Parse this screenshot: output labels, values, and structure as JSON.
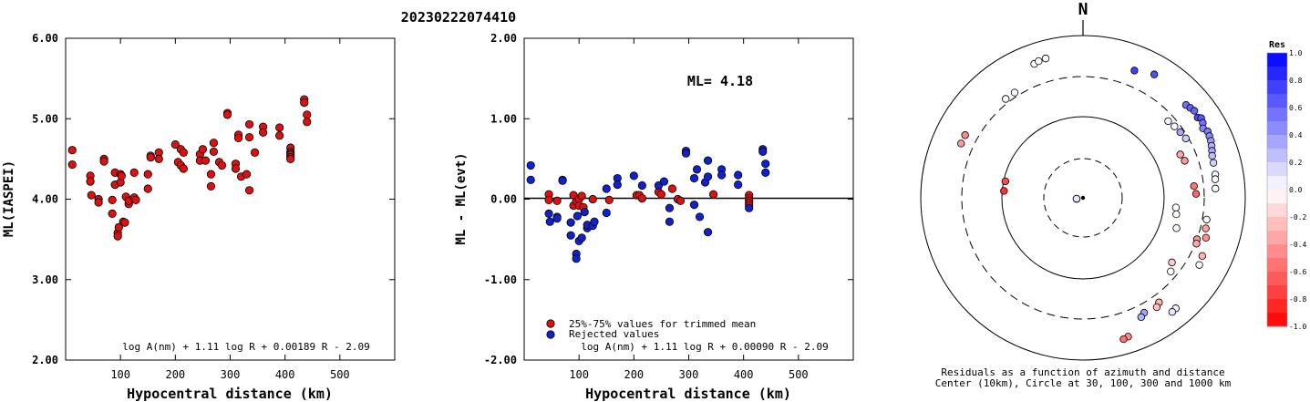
{
  "title": "20230222074410",
  "chart_data": [
    {
      "type": "scatter",
      "xlabel": "Hypocentral distance (km)",
      "ylabel": "ML(IASPEI)",
      "xlim": [
        0,
        600
      ],
      "ylim": [
        2.0,
        6.0
      ],
      "xticks": [
        "100",
        "200",
        "300",
        "400",
        "500"
      ],
      "yticks": [
        "2.00",
        "3.00",
        "4.00",
        "5.00",
        "6.00"
      ],
      "formula": "log A(nm) + 1.11 log R + 0.00189 R - 2.09",
      "series": [
        {
          "color": "#dd1111",
          "points": [
            [
              12,
              4.61
            ],
            [
              12,
              4.43
            ],
            [
              45,
              4.29
            ],
            [
              45,
              4.22
            ],
            [
              47,
              4.05
            ],
            [
              60,
              4.0
            ],
            [
              60,
              3.96
            ],
            [
              70,
              4.5
            ],
            [
              70,
              4.47
            ],
            [
              85,
              3.99
            ],
            [
              85,
              3.82
            ],
            [
              90,
              4.33
            ],
            [
              90,
              4.18
            ],
            [
              95,
              3.58
            ],
            [
              95,
              3.54
            ],
            [
              97,
              3.65
            ],
            [
              100,
              4.31
            ],
            [
              100,
              4.21
            ],
            [
              102,
              4.29
            ],
            [
              105,
              3.72
            ],
            [
              108,
              3.71
            ],
            [
              110,
              4.03
            ],
            [
              115,
              3.94
            ],
            [
              115,
              3.98
            ],
            [
              125,
              4.33
            ],
            [
              125,
              4.02
            ],
            [
              128,
              3.99
            ],
            [
              150,
              4.31
            ],
            [
              150,
              4.13
            ],
            [
              155,
              4.54
            ],
            [
              155,
              4.52
            ],
            [
              170,
              4.58
            ],
            [
              170,
              4.5
            ],
            [
              200,
              4.68
            ],
            [
              205,
              4.46
            ],
            [
              210,
              4.42
            ],
            [
              210,
              4.62
            ],
            [
              215,
              4.38
            ],
            [
              215,
              4.58
            ],
            [
              245,
              4.56
            ],
            [
              245,
              4.48
            ],
            [
              250,
              4.62
            ],
            [
              255,
              4.48
            ],
            [
              265,
              4.31
            ],
            [
              265,
              4.16
            ],
            [
              270,
              4.7
            ],
            [
              270,
              4.59
            ],
            [
              280,
              4.46
            ],
            [
              285,
              4.42
            ],
            [
              295,
              5.07
            ],
            [
              295,
              5.05
            ],
            [
              310,
              4.44
            ],
            [
              310,
              4.38
            ],
            [
              315,
              4.8
            ],
            [
              315,
              4.76
            ],
            [
              320,
              4.28
            ],
            [
              330,
              4.31
            ],
            [
              335,
              4.93
            ],
            [
              335,
              4.77
            ],
            [
              335,
              4.11
            ],
            [
              345,
              4.58
            ],
            [
              360,
              4.9
            ],
            [
              360,
              4.83
            ],
            [
              390,
              4.89
            ],
            [
              390,
              4.79
            ],
            [
              410,
              4.64
            ],
            [
              410,
              4.59
            ],
            [
              410,
              4.57
            ],
            [
              410,
              4.55
            ],
            [
              410,
              4.52
            ],
            [
              410,
              4.5
            ],
            [
              435,
              5.24
            ],
            [
              435,
              5.2
            ],
            [
              440,
              5.05
            ],
            [
              440,
              4.96
            ]
          ]
        }
      ]
    },
    {
      "type": "scatter",
      "xlabel": "Hypocentral distance (km)",
      "ylabel": "ML - ML(evt)",
      "xlim": [
        0,
        600
      ],
      "ylim": [
        -2.0,
        2.0
      ],
      "xticks": [
        "100",
        "200",
        "300",
        "400",
        "500"
      ],
      "yticks": [
        "-2.00",
        "-1.00",
        "0.00",
        "1.00",
        "2.00"
      ],
      "annotation": "ML= 4.18",
      "formula": "log A(nm) + 1.11 log R + 0.00090 R - 2.09",
      "legend": [
        "25%-75% values for trimmed mean",
        "Rejected values"
      ],
      "series": [
        {
          "name": "25%-75% values for trimmed mean",
          "color": "#dd1111",
          "points": [
            [
              45,
              0.06
            ],
            [
              45,
              -0.01
            ],
            [
              60,
              -0.02
            ],
            [
              90,
              0.05
            ],
            [
              90,
              -0.08
            ],
            [
              95,
              -0.03
            ],
            [
              100,
              0.0
            ],
            [
              100,
              -0.08
            ],
            [
              105,
              0.04
            ],
            [
              108,
              -0.1
            ],
            [
              125,
              0.0
            ],
            [
              155,
              -0.01
            ],
            [
              205,
              0.05
            ],
            [
              210,
              0.05
            ],
            [
              215,
              0.01
            ],
            [
              245,
              0.09
            ],
            [
              250,
              0.06
            ],
            [
              270,
              0.13
            ],
            [
              280,
              0.0
            ],
            [
              285,
              -0.02
            ],
            [
              345,
              0.06
            ],
            [
              410,
              0.05
            ],
            [
              410,
              0.01
            ],
            [
              410,
              -0.02
            ],
            [
              410,
              -0.05
            ],
            [
              410,
              -0.08
            ]
          ]
        },
        {
          "name": "Rejected values",
          "color": "#1122cc",
          "points": [
            [
              12,
              0.42
            ],
            [
              12,
              0.24
            ],
            [
              45,
              -0.18
            ],
            [
              47,
              -0.28
            ],
            [
              60,
              -0.22
            ],
            [
              60,
              -0.24
            ],
            [
              70,
              0.24
            ],
            [
              70,
              0.23
            ],
            [
              85,
              -0.29
            ],
            [
              85,
              -0.45
            ],
            [
              95,
              -0.68
            ],
            [
              95,
              -0.74
            ],
            [
              97,
              -0.21
            ],
            [
              100,
              -0.52
            ],
            [
              105,
              -0.48
            ],
            [
              110,
              -0.16
            ],
            [
              115,
              -0.36
            ],
            [
              115,
              -0.32
            ],
            [
              125,
              -0.33
            ],
            [
              128,
              -0.28
            ],
            [
              150,
              0.13
            ],
            [
              150,
              -0.17
            ],
            [
              170,
              0.26
            ],
            [
              170,
              0.18
            ],
            [
              200,
              0.29
            ],
            [
              215,
              0.17
            ],
            [
              245,
              0.17
            ],
            [
              255,
              0.22
            ],
            [
              265,
              -0.11
            ],
            [
              265,
              -0.28
            ],
            [
              295,
              0.6
            ],
            [
              295,
              0.57
            ],
            [
              310,
              0.26
            ],
            [
              310,
              -0.07
            ],
            [
              315,
              0.37
            ],
            [
              320,
              -0.22
            ],
            [
              330,
              0.21
            ],
            [
              335,
              0.48
            ],
            [
              335,
              0.28
            ],
            [
              335,
              -0.41
            ],
            [
              360,
              0.37
            ],
            [
              360,
              0.3
            ],
            [
              390,
              0.3
            ],
            [
              390,
              0.18
            ],
            [
              410,
              -0.11
            ],
            [
              435,
              0.62
            ],
            [
              435,
              0.59
            ],
            [
              440,
              0.44
            ],
            [
              440,
              0.33
            ]
          ]
        }
      ]
    },
    {
      "type": "polar-scatter",
      "north_label": "N",
      "caption": "Residuals as a function of azimuth and distance",
      "caption2": "Center (10km), Circle at 30, 100, 300 and 1000 km",
      "rings_km": [
        10,
        30,
        100,
        300,
        1000
      ],
      "colorbar": {
        "title": "Res",
        "ticks": [
          "1.0",
          "0.8",
          "0.6",
          "0.4",
          "0.2",
          "0.0",
          "-0.2",
          "-0.4",
          "-0.6",
          "-0.8",
          "-1.0"
        ],
        "vmin": -1.0,
        "vmax": 1.0
      },
      "stations": [
        {
          "az": 260,
          "dist": 12,
          "res": 0.05
        },
        {
          "az": 262,
          "dist": 12,
          "res": 0.1
        },
        {
          "az": 282,
          "dist": 95,
          "res": -0.7
        },
        {
          "az": 275,
          "dist": 95,
          "res": -0.8
        },
        {
          "az": 294,
          "dist": 430,
          "res": -0.4
        },
        {
          "az": 298,
          "dist": 430,
          "res": -0.45
        },
        {
          "az": 322,
          "dist": 340,
          "res": 0.02
        },
        {
          "az": 327,
          "dist": 340,
          "res": 0.03
        },
        {
          "az": 340,
          "dist": 560,
          "res": 0.0
        },
        {
          "az": 342,
          "dist": 580,
          "res": 0.0
        },
        {
          "az": 345,
          "dist": 590,
          "res": 0.02
        },
        {
          "az": 22,
          "dist": 480,
          "res": 0.75
        },
        {
          "az": 30,
          "dist": 560,
          "res": 0.7
        },
        {
          "az": 48,
          "dist": 500,
          "res": 0.55
        },
        {
          "az": 50,
          "dist": 520,
          "res": 0.62
        },
        {
          "az": 52,
          "dist": 540,
          "res": 0.6
        },
        {
          "az": 55,
          "dist": 520,
          "res": 0.7
        },
        {
          "az": 56,
          "dist": 560,
          "res": 0.66
        },
        {
          "az": 58,
          "dist": 540,
          "res": 0.55
        },
        {
          "az": 60,
          "dist": 500,
          "res": 0.48
        },
        {
          "az": 62,
          "dist": 540,
          "res": 0.5
        },
        {
          "az": 64,
          "dist": 530,
          "res": 0.45
        },
        {
          "az": 66,
          "dist": 520,
          "res": 0.4
        },
        {
          "az": 68,
          "dist": 500,
          "res": 0.3
        },
        {
          "az": 70,
          "dist": 480,
          "res": 0.35
        },
        {
          "az": 72,
          "dist": 460,
          "res": 0.25
        },
        {
          "az": 75,
          "dist": 450,
          "res": 0.18
        },
        {
          "az": 80,
          "dist": 440,
          "res": 0.06
        },
        {
          "az": 82,
          "dist": 430,
          "res": 0.01
        },
        {
          "az": 86,
          "dist": 420,
          "res": 0.02
        },
        {
          "az": 48,
          "dist": 250,
          "res": 0.05
        },
        {
          "az": 52,
          "dist": 260,
          "res": 0.03
        },
        {
          "az": 56,
          "dist": 270,
          "res": 0.35
        },
        {
          "az": 60,
          "dist": 280,
          "res": 0.2
        },
        {
          "az": 66,
          "dist": 200,
          "res": -0.35
        },
        {
          "az": 70,
          "dist": 210,
          "res": -0.4
        },
        {
          "az": 84,
          "dist": 230,
          "res": -0.55
        },
        {
          "az": 88,
          "dist": 240,
          "res": -0.6
        },
        {
          "az": 96,
          "dist": 140,
          "res": 0.0
        },
        {
          "az": 100,
          "dist": 145,
          "res": 0.02
        },
        {
          "az": 108,
          "dist": 160,
          "res": 0.05
        },
        {
          "az": 110,
          "dist": 300,
          "res": -0.4
        },
        {
          "az": 112,
          "dist": 310,
          "res": -0.35
        },
        {
          "az": 100,
          "dist": 340,
          "res": 0.02
        },
        {
          "az": 104,
          "dist": 350,
          "res": -0.38
        },
        {
          "az": 108,
          "dist": 380,
          "res": -0.42
        },
        {
          "az": 126,
          "dist": 220,
          "res": -0.2
        },
        {
          "az": 130,
          "dist": 250,
          "res": 0.0
        },
        {
          "az": 144,
          "dist": 380,
          "res": -0.3
        },
        {
          "az": 146,
          "dist": 410,
          "res": -0.25
        },
        {
          "az": 140,
          "dist": 590,
          "res": 0.05
        },
        {
          "az": 142,
          "dist": 600,
          "res": 0.1
        },
        {
          "az": 152,
          "dist": 390,
          "res": 0.35
        },
        {
          "az": 154,
          "dist": 420,
          "res": 0.3
        },
        {
          "az": 162,
          "dist": 620,
          "res": -0.45
        },
        {
          "az": 164,
          "dist": 640,
          "res": -0.55
        },
        {
          "az": 116,
          "dist": 420,
          "res": -0.3
        },
        {
          "az": 120,
          "dist": 440,
          "res": 0.02
        }
      ]
    }
  ]
}
